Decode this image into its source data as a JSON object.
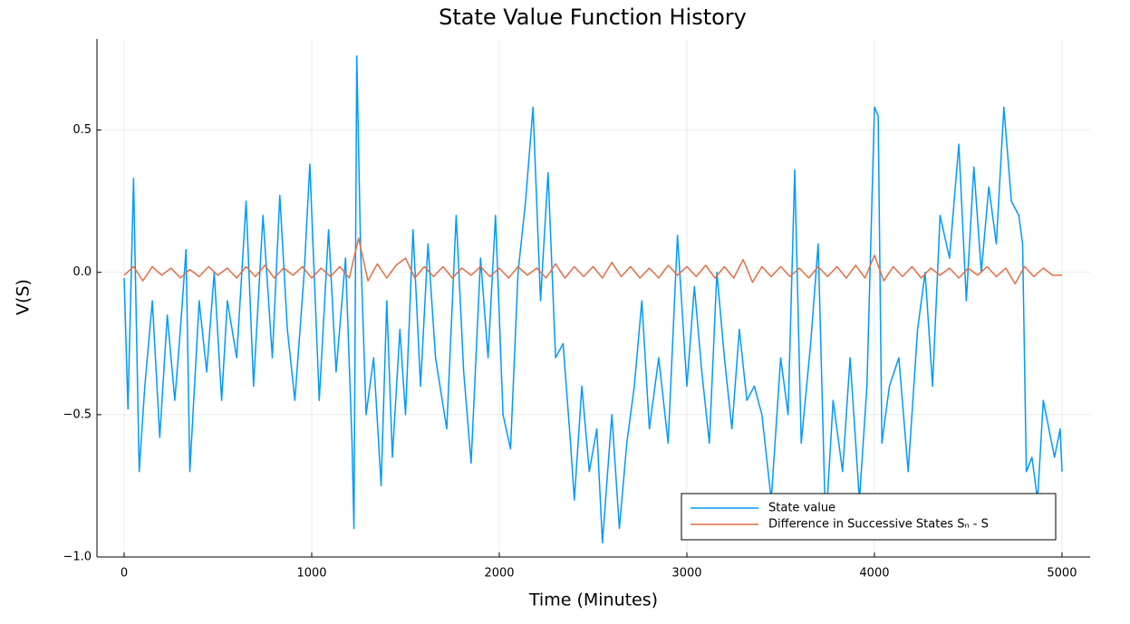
{
  "chart_data": {
    "type": "line",
    "title": "State Value Function History",
    "x_label": "Time (Minutes)",
    "y_label": "V(S)",
    "xlim": [
      -145,
      5150
    ],
    "xticks": [
      0,
      1000,
      2000,
      3000,
      4000,
      5000
    ],
    "ylim": [
      -1.0,
      0.82
    ],
    "yticks": [
      {
        "value": -1.0,
        "label": "−1.0"
      },
      {
        "value": -0.5,
        "label": "−0.5"
      },
      {
        "value": 0.0,
        "label": "0.0"
      },
      {
        "value": 0.5,
        "label": "0.5"
      }
    ],
    "grid": true,
    "legend": "bottom-right",
    "series": [
      {
        "name": "State value",
        "color": "#009af9",
        "x": [
          0,
          20,
          50,
          80,
          110,
          150,
          190,
          230,
          270,
          300,
          330,
          350,
          400,
          440,
          480,
          520,
          550,
          600,
          650,
          690,
          740,
          790,
          830,
          870,
          910,
          960,
          990,
          1040,
          1090,
          1130,
          1180,
          1215,
          1225,
          1240,
          1260,
          1290,
          1330,
          1370,
          1400,
          1430,
          1470,
          1500,
          1540,
          1580,
          1620,
          1660,
          1720,
          1770,
          1810,
          1850,
          1900,
          1940,
          1980,
          2020,
          2060,
          2100,
          2140,
          2180,
          2220,
          2260,
          2300,
          2340,
          2380,
          2400,
          2440,
          2480,
          2520,
          2550,
          2600,
          2640,
          2680,
          2720,
          2760,
          2800,
          2850,
          2900,
          2950,
          3000,
          3040,
          3080,
          3120,
          3160,
          3200,
          3240,
          3280,
          3320,
          3360,
          3400,
          3450,
          3500,
          3540,
          3575,
          3610,
          3660,
          3700,
          3740,
          3780,
          3830,
          3870,
          3920,
          3960,
          4000,
          4020,
          4040,
          4080,
          4130,
          4180,
          4230,
          4270,
          4310,
          4350,
          4400,
          4450,
          4490,
          4530,
          4570,
          4610,
          4650,
          4690,
          4730,
          4770,
          4790,
          4810,
          4840,
          4870,
          4900,
          4930,
          4960,
          4990,
          5000
        ],
        "values": [
          -0.02,
          -0.48,
          0.33,
          -0.7,
          -0.4,
          -0.1,
          -0.58,
          -0.15,
          -0.45,
          -0.2,
          0.08,
          -0.7,
          -0.1,
          -0.35,
          0.0,
          -0.45,
          -0.1,
          -0.3,
          0.25,
          -0.4,
          0.2,
          -0.3,
          0.27,
          -0.2,
          -0.45,
          0.0,
          0.38,
          -0.45,
          0.15,
          -0.35,
          0.05,
          -0.6,
          -0.9,
          0.76,
          0.1,
          -0.5,
          -0.3,
          -0.75,
          -0.1,
          -0.65,
          -0.2,
          -0.5,
          0.15,
          -0.4,
          0.1,
          -0.3,
          -0.55,
          0.2,
          -0.35,
          -0.67,
          0.05,
          -0.3,
          0.2,
          -0.5,
          -0.62,
          0.0,
          0.25,
          0.58,
          -0.1,
          0.35,
          -0.3,
          -0.25,
          -0.6,
          -0.8,
          -0.4,
          -0.7,
          -0.55,
          -0.95,
          -0.5,
          -0.9,
          -0.6,
          -0.4,
          -0.1,
          -0.55,
          -0.3,
          -0.6,
          0.13,
          -0.4,
          -0.05,
          -0.35,
          -0.6,
          0.0,
          -0.3,
          -0.55,
          -0.2,
          -0.45,
          -0.4,
          -0.5,
          -0.8,
          -0.3,
          -0.5,
          0.36,
          -0.6,
          -0.25,
          0.1,
          -0.9,
          -0.45,
          -0.7,
          -0.3,
          -0.8,
          -0.4,
          0.58,
          0.55,
          -0.6,
          -0.4,
          -0.3,
          -0.7,
          -0.2,
          0.0,
          -0.4,
          0.2,
          0.05,
          0.45,
          -0.1,
          0.37,
          0.0,
          0.3,
          0.1,
          0.58,
          0.25,
          0.2,
          0.1,
          -0.7,
          -0.65,
          -0.8,
          -0.45,
          -0.55,
          -0.65,
          -0.55,
          -0.7
        ]
      },
      {
        "name": "Difference in Successive States Sₙ - S",
        "color": "#e26f46",
        "x": [
          0,
          50,
          100,
          150,
          200,
          250,
          300,
          350,
          400,
          450,
          500,
          550,
          600,
          650,
          700,
          750,
          800,
          850,
          900,
          950,
          1000,
          1050,
          1100,
          1150,
          1200,
          1250,
          1300,
          1350,
          1400,
          1450,
          1500,
          1550,
          1600,
          1650,
          1700,
          1750,
          1800,
          1850,
          1900,
          1950,
          2000,
          2050,
          2100,
          2150,
          2200,
          2250,
          2300,
          2350,
          2400,
          2450,
          2500,
          2550,
          2600,
          2650,
          2700,
          2750,
          2800,
          2850,
          2900,
          2950,
          3000,
          3050,
          3100,
          3150,
          3200,
          3250,
          3300,
          3350,
          3400,
          3450,
          3500,
          3550,
          3600,
          3650,
          3700,
          3750,
          3800,
          3850,
          3900,
          3950,
          4000,
          4050,
          4100,
          4150,
          4200,
          4250,
          4300,
          4350,
          4400,
          4450,
          4500,
          4550,
          4600,
          4650,
          4700,
          4750,
          4800,
          4850,
          4900,
          4950,
          5000
        ],
        "values": [
          -0.01,
          0.02,
          -0.03,
          0.02,
          -0.01,
          0.015,
          -0.02,
          0.01,
          -0.015,
          0.02,
          -0.01,
          0.015,
          -0.02,
          0.02,
          -0.015,
          0.025,
          -0.02,
          0.015,
          -0.01,
          0.02,
          -0.02,
          0.015,
          -0.015,
          0.02,
          -0.02,
          0.12,
          -0.03,
          0.03,
          -0.02,
          0.025,
          0.05,
          -0.02,
          0.02,
          -0.015,
          0.02,
          -0.02,
          0.015,
          -0.01,
          0.02,
          -0.015,
          0.015,
          -0.02,
          0.02,
          -0.01,
          0.015,
          -0.02,
          0.03,
          -0.02,
          0.02,
          -0.015,
          0.02,
          -0.02,
          0.035,
          -0.015,
          0.02,
          -0.02,
          0.015,
          -0.02,
          0.025,
          -0.01,
          0.02,
          -0.015,
          0.025,
          -0.02,
          0.02,
          -0.02,
          0.045,
          -0.035,
          0.02,
          -0.015,
          0.02,
          -0.015,
          0.015,
          -0.02,
          0.02,
          -0.015,
          0.02,
          -0.02,
          0.025,
          -0.02,
          0.06,
          -0.03,
          0.02,
          -0.015,
          0.02,
          -0.02,
          0.015,
          -0.01,
          0.015,
          -0.02,
          0.015,
          -0.01,
          0.02,
          -0.015,
          0.015,
          -0.04,
          0.02,
          -0.015,
          0.015,
          -0.01,
          -0.01
        ]
      }
    ]
  }
}
